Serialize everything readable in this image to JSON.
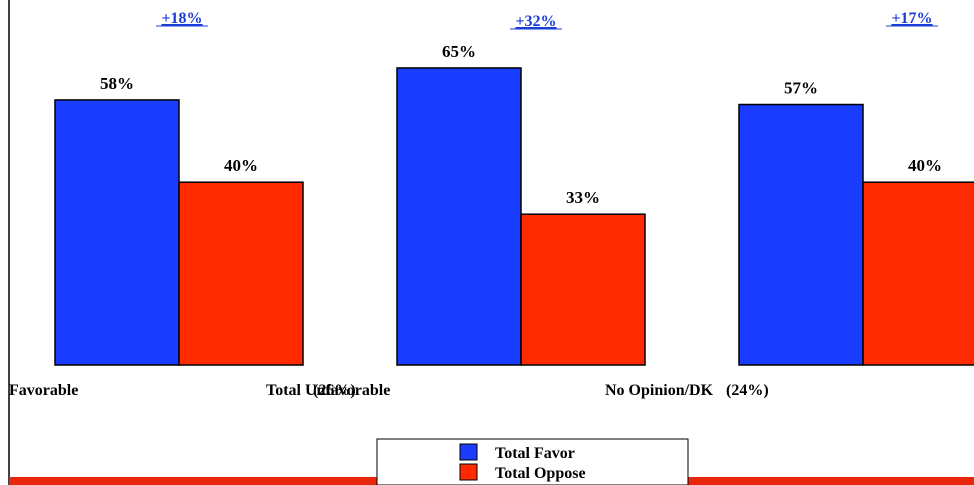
{
  "chart_data": {
    "type": "bar",
    "categories": [
      "Favorable",
      "Total Unfavorable",
      "No Opinion/DK"
    ],
    "category_shares": [
      "",
      "(26%)",
      "(24%)"
    ],
    "series": [
      {
        "name": "Total Favor",
        "values": [
          58,
          65,
          57
        ],
        "labels": [
          "58%",
          "65%",
          "57%"
        ]
      },
      {
        "name": "Total Oppose",
        "values": [
          40,
          33,
          40
        ],
        "labels": [
          "40%",
          "33%",
          "40%"
        ]
      }
    ],
    "differences": [
      "+18%",
      "+32%",
      "+17%"
    ],
    "ylim": [
      0,
      100
    ],
    "grid": false,
    "legend_position": "bottom-center",
    "colors": {
      "favor": "#1a3cff",
      "oppose": "#ff2a00",
      "difference": "#1a3cd8",
      "footer_stripe": "#e8260c"
    }
  }
}
